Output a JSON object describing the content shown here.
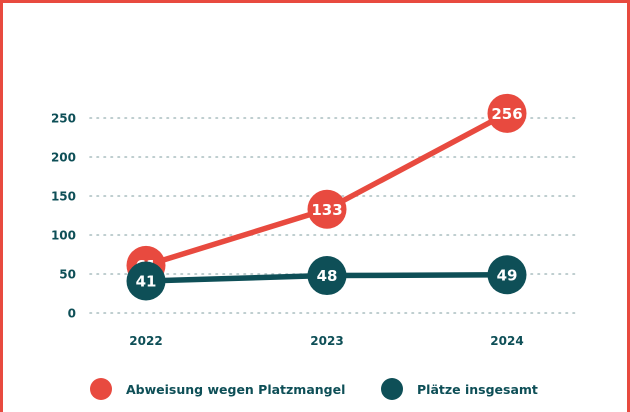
{
  "chart_data": {
    "type": "line",
    "title": "",
    "xlabel": "",
    "ylabel": "",
    "categories": [
      "2022",
      "2023",
      "2024"
    ],
    "yticks": [
      0,
      50,
      100,
      150,
      200,
      250
    ],
    "ylim": [
      0,
      250
    ],
    "grid": true,
    "series": [
      {
        "name": "Abweisung wegen Platzmangel",
        "color": "#e84a3f",
        "values": [
          61,
          133,
          256
        ],
        "labels": [
          "61",
          "133",
          "256"
        ]
      },
      {
        "name": "Plätze insgesamt",
        "color": "#0e4f57",
        "values": [
          41,
          48,
          49
        ],
        "labels": [
          "41",
          "48",
          "49"
        ]
      }
    ],
    "legend_position": "bottom"
  },
  "colors": {
    "frame": "#e84a3f",
    "text": "#0e4f57",
    "grid": "#a9bdbf"
  }
}
